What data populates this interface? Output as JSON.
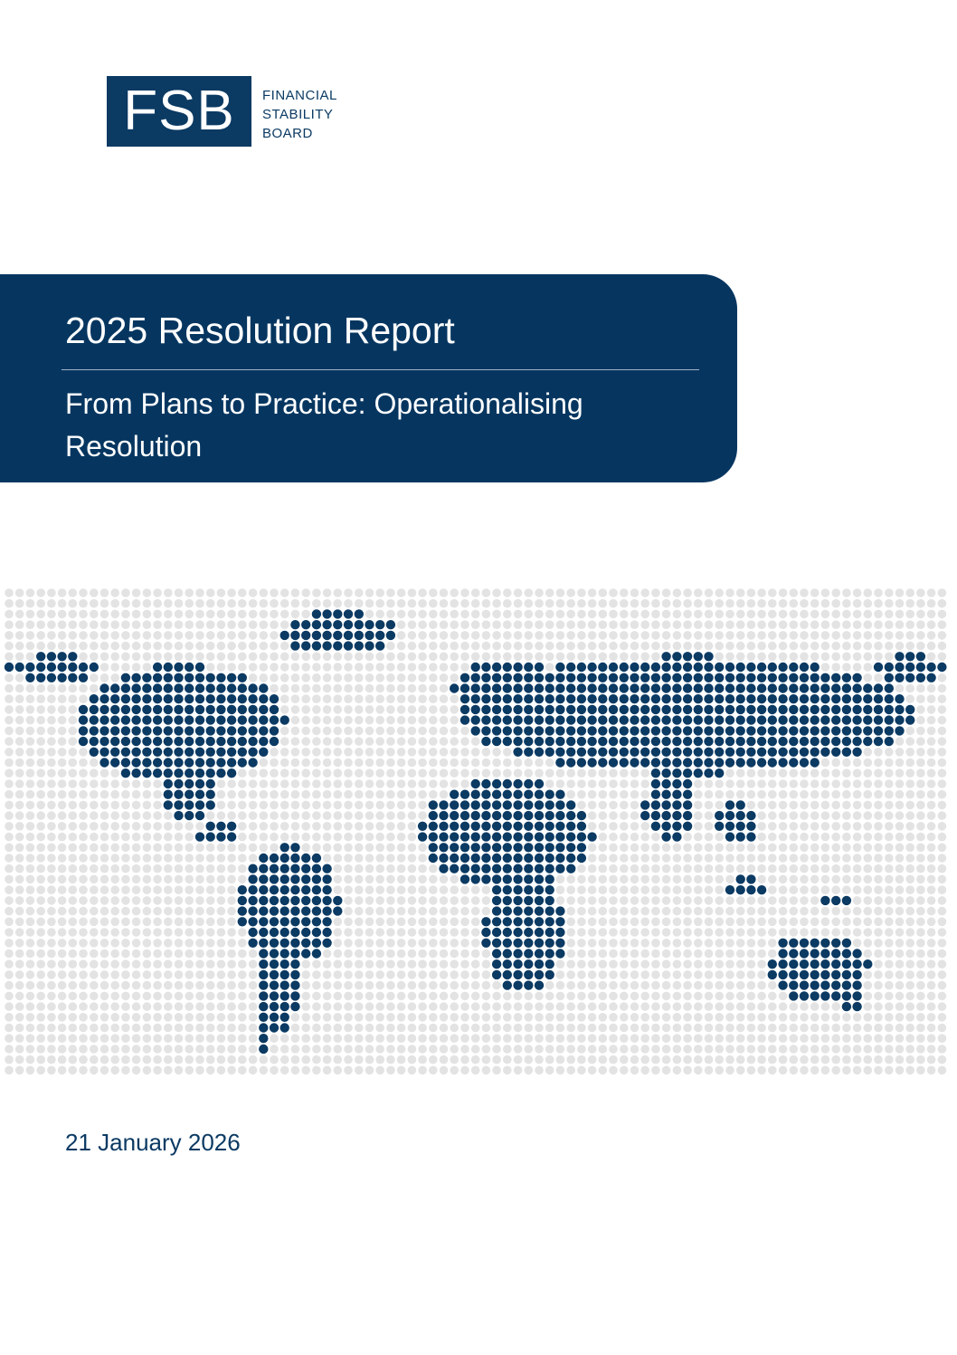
{
  "header": {
    "logo": "FSB",
    "org_lines": [
      "FINANCIAL",
      "STABILITY",
      "BOARD"
    ]
  },
  "banner": {
    "title": "2025 Resolution Report",
    "subtitle": "From Plans to Practice: Operationalising Resolution"
  },
  "date": "21 January 2026"
}
